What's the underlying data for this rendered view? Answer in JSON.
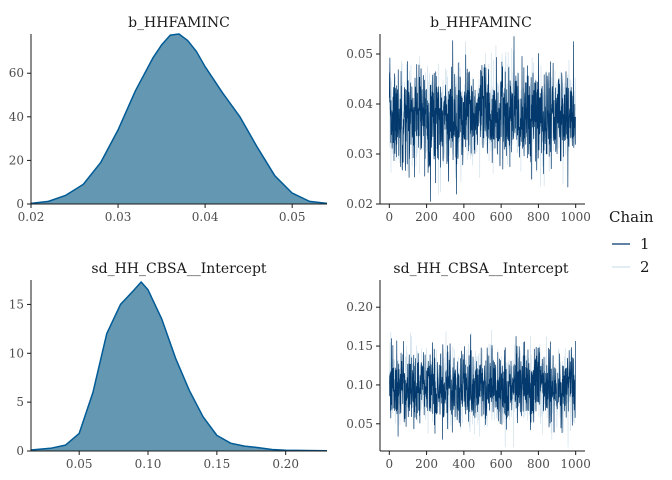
{
  "chart_data": [
    {
      "type": "area",
      "title": "b_HHFAMINC",
      "xlim": [
        0.02,
        0.054
      ],
      "ylim": [
        0,
        78
      ],
      "xticks": [
        0.02,
        0.03,
        0.04,
        0.05
      ],
      "xtick_labels": [
        "0.02",
        "0.03",
        "0.04",
        "0.05"
      ],
      "yticks": [
        0,
        20,
        40,
        60
      ],
      "ytick_labels": [
        "0",
        "20",
        "40",
        "60"
      ],
      "x": [
        0.02,
        0.022,
        0.024,
        0.026,
        0.028,
        0.03,
        0.032,
        0.034,
        0.035,
        0.036,
        0.037,
        0.038,
        0.039,
        0.04,
        0.042,
        0.044,
        0.046,
        0.048,
        0.05,
        0.052,
        0.054
      ],
      "values": [
        0.3,
        1.2,
        4,
        9,
        19,
        34,
        52,
        67,
        73,
        77.5,
        78,
        75,
        70,
        63,
        51,
        40,
        26,
        13,
        5,
        1.2,
        0.3
      ],
      "fill_color": "#6497b1",
      "line_color": "#005b96"
    },
    {
      "type": "line",
      "title": "b_HHFAMINC",
      "xlim": [
        0,
        1000
      ],
      "ylim": [
        0.02,
        0.054
      ],
      "xticks": [
        0,
        200,
        400,
        600,
        800,
        1000
      ],
      "xtick_labels": [
        "0",
        "200",
        "400",
        "600",
        "800",
        "1000"
      ],
      "yticks": [
        0.02,
        0.03,
        0.04,
        0.05
      ],
      "ytick_labels": [
        "0.02",
        "0.03",
        "0.04",
        "0.05"
      ],
      "n_iterations": 1000,
      "series": [
        {
          "name": "1",
          "mean": 0.0375,
          "sd": 0.005,
          "min": 0.0205,
          "max": 0.0535,
          "color": "#03396c"
        },
        {
          "name": "2",
          "mean": 0.0375,
          "sd": 0.005,
          "min": 0.022,
          "max": 0.0525,
          "color": "#d1e1ec"
        }
      ]
    },
    {
      "type": "area",
      "title": "sd_HH_CBSA__Intercept",
      "xlim": [
        0.015,
        0.23
      ],
      "ylim": [
        0,
        17.5
      ],
      "xticks": [
        0.05,
        0.1,
        0.15,
        0.2
      ],
      "xtick_labels": [
        "0.05",
        "0.10",
        "0.15",
        "0.20"
      ],
      "yticks": [
        0,
        5,
        10,
        15
      ],
      "ytick_labels": [
        "0",
        "5",
        "10",
        "15"
      ],
      "x": [
        0.015,
        0.03,
        0.04,
        0.05,
        0.06,
        0.07,
        0.08,
        0.09,
        0.095,
        0.1,
        0.11,
        0.12,
        0.13,
        0.14,
        0.15,
        0.16,
        0.17,
        0.18,
        0.19,
        0.2,
        0.23
      ],
      "values": [
        0.1,
        0.3,
        0.6,
        1.8,
        6,
        12,
        15,
        16.5,
        17.3,
        16.5,
        13.5,
        9.5,
        6.2,
        3.5,
        1.6,
        0.8,
        0.5,
        0.35,
        0.15,
        0.08,
        0.02
      ],
      "fill_color": "#6497b1",
      "line_color": "#005b96"
    },
    {
      "type": "line",
      "title": "sd_HH_CBSA__Intercept",
      "xlim": [
        0,
        1000
      ],
      "ylim": [
        0.015,
        0.235
      ],
      "xticks": [
        0,
        200,
        400,
        600,
        800,
        1000
      ],
      "xtick_labels": [
        "0",
        "200",
        "400",
        "600",
        "800",
        "1000"
      ],
      "yticks": [
        0.05,
        0.1,
        0.15,
        0.2
      ],
      "ytick_labels": [
        "0.05",
        "0.10",
        "0.15",
        "0.20"
      ],
      "n_iterations": 1000,
      "series": [
        {
          "name": "1",
          "mean": 0.098,
          "sd": 0.025,
          "min": 0.03,
          "max": 0.185,
          "color": "#03396c"
        },
        {
          "name": "2",
          "mean": 0.098,
          "sd": 0.025,
          "min": 0.02,
          "max": 0.228,
          "color": "#d1e1ec"
        }
      ]
    }
  ],
  "legend": {
    "title": "Chain",
    "items": [
      {
        "label": "1",
        "color": "#03396c"
      },
      {
        "label": "2",
        "color": "#d1e1ec"
      }
    ]
  }
}
